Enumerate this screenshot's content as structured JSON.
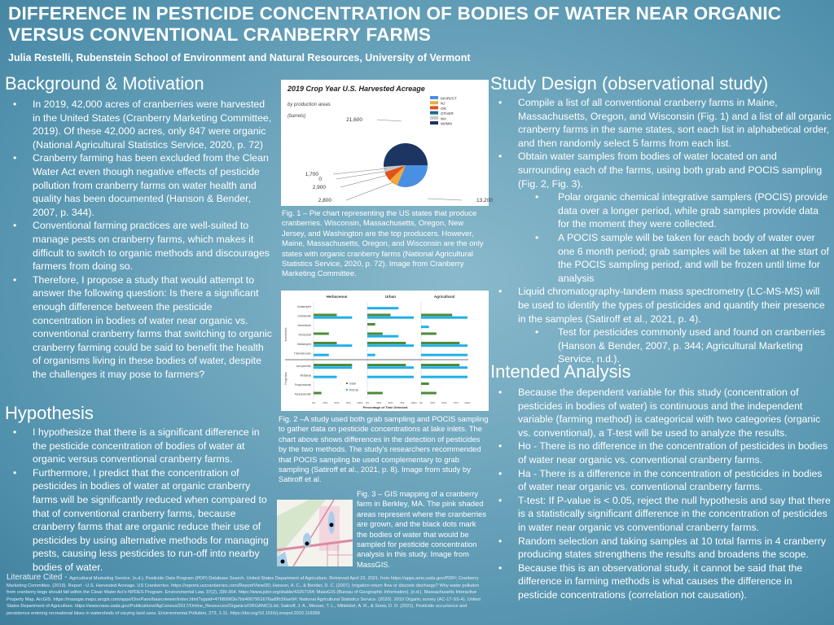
{
  "title": "DIFFERENCE IN PESTICIDE CONCENTRATION OF BODIES OF WATER NEAR ORGANIC VERSUS CONVENTIONAL CRANBERRY FARMS",
  "subtitle": "Julia Restelli, Rubenstein School of Environment and Natural Resources, University of Vermont",
  "background": {
    "heading": "Background & Motivation",
    "bullets": [
      {
        "text": " In 2019, 42,000 acres of cranberries were harvested in the United States (Cranberry Marketing Committee, 2019). Of these 42,000 acres, only 847 were organic (National Agricultural Statistics Service, 2020, p. 72)",
        "level": 1
      },
      {
        "text": "Cranberry farming has been excluded from the Clean Water Act even though negative effects of pesticide pollution from cranberry farms on water health and quality has been documented (Hanson & Bender, 2007, p. 344).",
        "level": 1
      },
      {
        "text": "Conventional farming practices are well-suited to manage pests on cranberry farms, which makes it difficult to switch to organic methods and discourages farmers from doing so.",
        "level": 1
      },
      {
        "text": "Therefore, I propose a study that would attempt to answer the following question: Is there a significant enough difference between the pesticide concentration in bodies of water near organic vs. conventional cranberry farms that switching to organic cranberry farming could be said to benefit the health of organisms living in these bodies of water, despite the challenges it may pose to farmers?",
        "level": 1
      }
    ]
  },
  "hypothesis": {
    "heading": "Hypothesis",
    "bullets": [
      {
        "text": "I hypothesize that there is a significant difference in the pesticide concentration of bodies of water at organic versus conventional cranberry farms.",
        "level": 1
      },
      {
        "text": "Furthermore, I predict that the concentration of pesticides in bodies of water at organic cranberry farms will be significantly reduced when compared to that of conventional cranberry farms, because cranberry farms that are organic reduce their use of pesticides by using alternative methods for managing pests, causing less pesticides to run-off into nearby bodies of water.",
        "level": 1
      }
    ]
  },
  "literature": {
    "label": "Literature Cited - ",
    "text": "Agricultural Marketing Service. (n.d.). Pesticide Data Program (PDP) Database Search. United States Department of Agriculture. Retrieved April 23, 2021, from https://apps.ams.usda.gov/PDP/; Cranberry Marketing Committee. (2019). Report - U.S. Harvested Acreage. US Cranberries. https://reports.uscranberries.com/Report/View/30; Hanson, A. C., & Bender, D. C. (2007). Irrigation return flow or discrete discharge? Why water pollution from cranberry bogs should fall within the Clean Water Act's NPDES Program. Environmental Law, 37(2), 339-364. https://www.jstor.org/stable/43267164; MassGIS (Bureau of Geographic Information). (n.d.). Massachusetts Interactive Property Map. ArcGIS. https://massgis.maps.arcgis.com/apps/OnePane/basicviewer/index.html?appid=47689963e7bb4007961676ad9fc56ae9#; National Agricultural Statistics Service. (2020). 2019 Organic survey (AC-17-SS-4). United States Department of Agriculture. https://www.nass.usda.gov/Publications/AgCensus/2017/Online_Resources/Organics/ORGANICS.txt; Satiroff, J. A., Messer, T. L., Mittelstet, A. R., & Snow, D. D. (2021). Pesticide occurrence and persistence entering recreational lakes in watersheds of varying land uses. Environmental Pollution, 273, 1-11. https://doi.org/10.1016/j.envpol.2020.116399"
  },
  "figures": {
    "fig1_caption": "Fig. 1 – Pie chart representing the US states that produce cranberries. Wisconsin, Massachusetts, Oregon, New Jersey, and Washington are the top producers. However, Maine, Massachusetts, Oregon, and Wisconsin are the only states with organic cranberry farms (National Agricultural Statistics Service, 2020, p. 72). Image from Cranberry Marketing Committee.",
    "fig2_caption": "Fig. 2 –A study used both grab sampling and POCIS sampling to gather data on pesticide concentrations at lake inlets. The chart above shows differences in the detection of pesticides by the two methods. The study's researchers recommended that POCIS sampling be used complementary to grab sampling (Satiroff et al., 2021, p. 8). Image from study by Satiroff et al.",
    "fig3_caption": "Fig. 3 – GIS mapping of a cranberry farm in Berkley, MA. The pink shaded areas represent where the cranberries are grown, and the black dots mark the bodies of water that would be sampled for pesticide concentration analysis in this study. Image from MassGIS."
  },
  "study": {
    "heading": "Study Design (observational study)",
    "bullets": [
      {
        "text": "Compile a list of all conventional cranberry farms in Maine, Massachusetts, Oregon, and Wisconsin (Fig.  1) and a list of all organic cranberry farms in the same states, sort each list in alphabetical order, and then randomly select 5 farms from each list.",
        "level": 1
      },
      {
        "text": "Obtain water samples from bodies of water located on and surrounding each of the farms, using both grab and POCIS sampling (Fig. 2, Fig. 3).",
        "level": 1
      },
      {
        "text": "Polar organic chemical integrative samplers (POCIS) provide data over a longer period, while grab samples provide data for the moment they were collected.",
        "level": 2
      },
      {
        "text": "A POCIS sample will be taken for each body of water over one 6 month period; grab samples will be taken at the start of the POCIS sampling period, and will be frozen until time for analysis",
        "level": 2
      },
      {
        "text": "Liquid chromatography-tandem mass spectrometry (LC-MS-MS) will be used to identify the types of pesticides and quantify their presence in the samples (Satiroff et al., 2021, p. 4).",
        "level": 1
      },
      {
        "text": "Test for pesticides commonly used and found on cranberries (Hanson & Bender, 2007, p. 344; Agricultural Marketing Service, n.d.).",
        "level": 2
      }
    ]
  },
  "analysis": {
    "heading": "Intended Analysis",
    "bullets": [
      {
        "text": "Because the dependent variable for this study (concentration of pesticides in bodies of water) is continuous and the independent variable (farming method) is categorical with two categories (organic vs. conventional), a T-test will be used to analyze the results.",
        "level": 1
      },
      {
        "text": "Ho -  There is no difference in the concentration of pesticides in bodies of water near organic vs. conventional cranberry farms.",
        "level": 1
      },
      {
        "text": "Ha - There is a difference in the concentration of pesticides in bodies of water near organic vs. conventional cranberry farms.",
        "level": 1
      },
      {
        "text": "T-test: If P-value is < 0.05, reject the null hypothesis and say that there is a statistically significant difference in the concentration of pesticides in water near organic vs conventional cranberry farms.",
        "level": 1
      },
      {
        "text": "Random selection and taking samples at 10 total farms in 4 cranberry producing states strengthens the results and broadens the scope.",
        "level": 1
      },
      {
        "text": "Because this is an observational study, it cannot be said that the difference in farming methods is what causes the difference in pesticide concentrations (correlation not causation).",
        "level": 1
      }
    ]
  },
  "chart_data": [
    {
      "type": "pie",
      "title": "2019 Crop Year U.S. Harvested Acreage",
      "subtitle": "by production areas",
      "unit": "(barrels)",
      "categories": [
        "MA/RI/CT",
        "NJ",
        "OR",
        "OTHER",
        "WA",
        "WI/MN"
      ],
      "values": [
        13200,
        2800,
        2900,
        0,
        1700,
        21600
      ],
      "value_labels": [
        "13,200",
        "2,800",
        "2,900",
        "0",
        "1,700",
        "21,600"
      ],
      "colors": [
        "#4a90e2",
        "#f5a93b",
        "#e0521c",
        "#1c6c8c",
        "#c8c8c8",
        "#1c3562"
      ],
      "legend": "top-right"
    },
    {
      "type": "bar",
      "orientation": "horizontal",
      "xlabel": "Percentage of Time Detected",
      "xlim": [
        0,
        100
      ],
      "xticks": [
        "0%",
        "25%",
        "50%",
        "75%",
        "100%"
      ],
      "panels": [
        "Herbaceous",
        "Urban",
        "Agricultural"
      ],
      "groups": [
        {
          "name": "Insecticides",
          "count": 6
        },
        {
          "name": "Fungicides",
          "count": 4
        }
      ],
      "categories": [
        "Acetamiprid",
        "Clothianidin",
        "Dinotefuran",
        "Flonicamid",
        "Imidacloprid",
        "Thiamethoxam",
        "Azoxystrobin",
        "Metalaxyl",
        "Propiconazole",
        "Pyraclostrobin"
      ],
      "series": [
        {
          "name": "Grab",
          "color": "#4e8a3a",
          "values": [
            [
              0,
              50,
              0,
              33,
              50,
              0,
              83,
              0,
              0,
              17
            ],
            [
              0,
              50,
              17,
              33,
              83,
              0,
              83,
              0,
              0,
              33
            ],
            [
              0,
              67,
              0,
              33,
              83,
              0,
              83,
              0,
              17,
              33
            ]
          ]
        },
        {
          "name": "POCIS",
          "color": "#1fb0ea",
          "values": [
            [
              0,
              83,
              0,
              0,
              83,
              33,
              83,
              50,
              0,
              0
            ],
            [
              67,
              100,
              0,
              67,
              100,
              17,
              100,
              100,
              0,
              0
            ],
            [
              0,
              100,
              17,
              0,
              100,
              100,
              100,
              100,
              0,
              0
            ]
          ]
        }
      ]
    }
  ]
}
